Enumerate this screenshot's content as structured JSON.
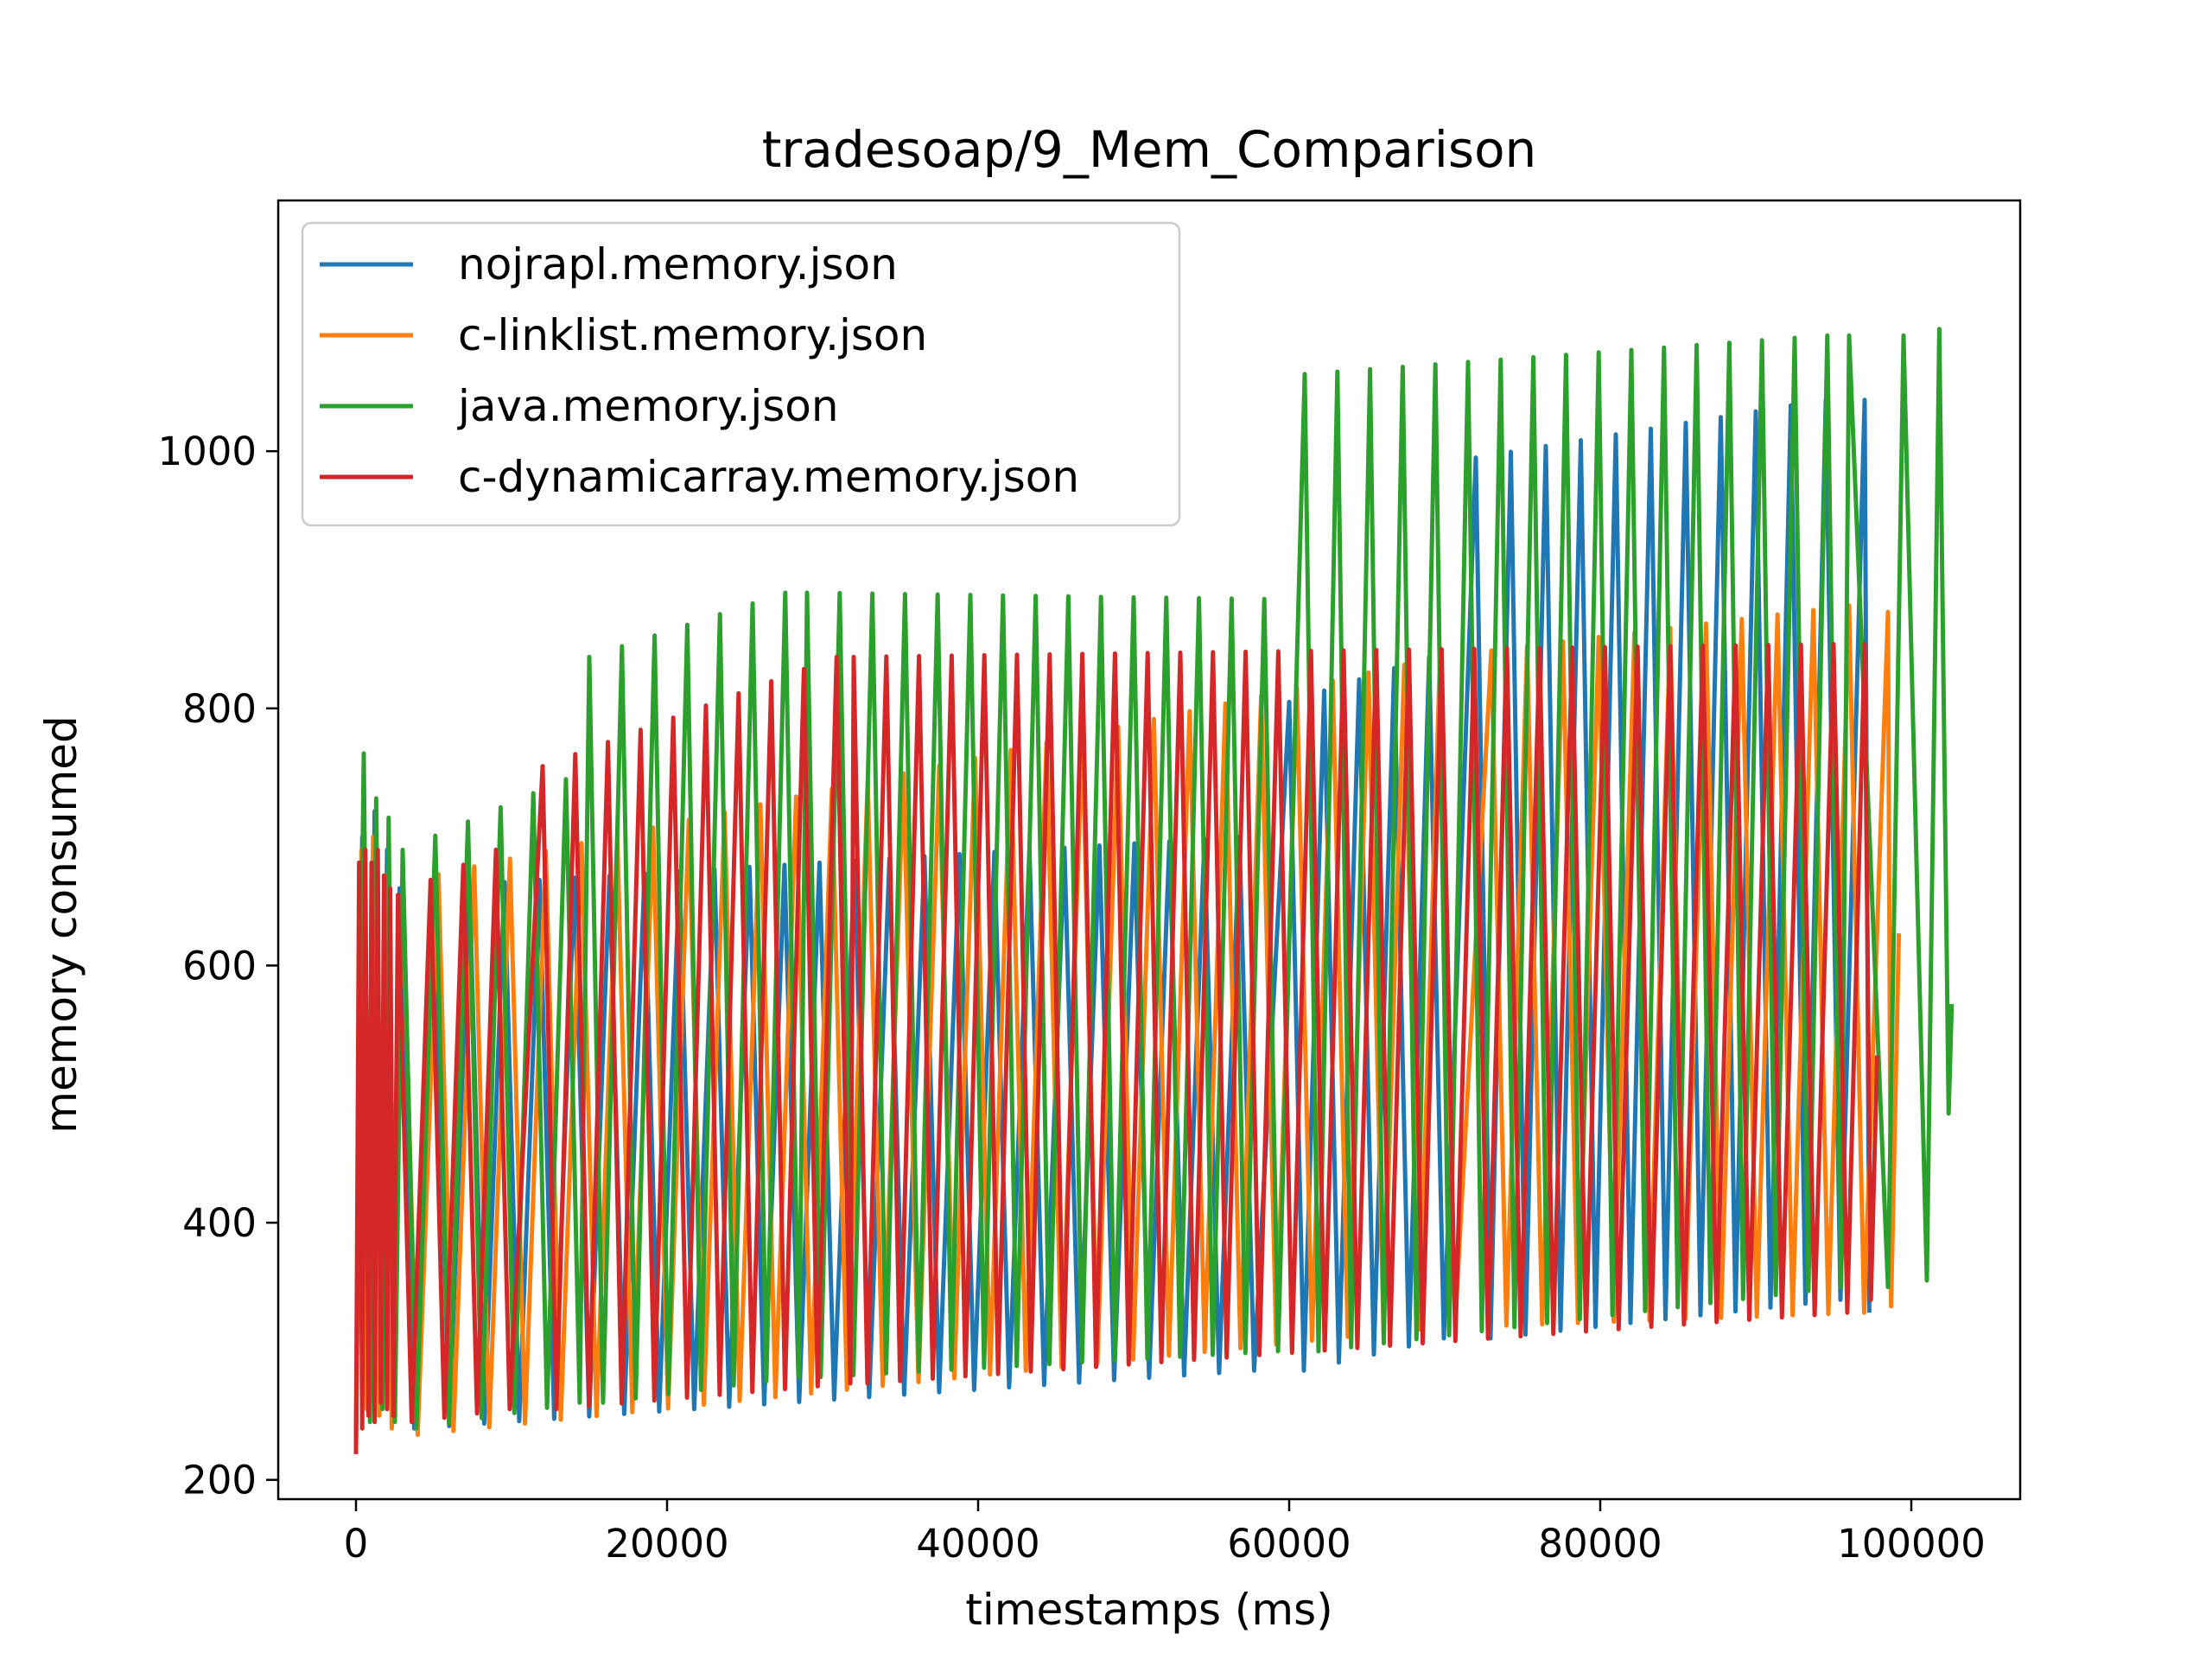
{
  "chart_data": {
    "type": "line",
    "title": "tradesoap/9_Mem_Comparison",
    "xlabel": "timestamps (ms)",
    "ylabel": "memory consumed",
    "xlim": [
      -5000,
      107000
    ],
    "ylim": [
      185,
      1195
    ],
    "x_ticks": [
      0,
      20000,
      40000,
      60000,
      80000,
      100000
    ],
    "x_tick_labels": [
      "0",
      "20000",
      "40000",
      "60000",
      "80000",
      "100000"
    ],
    "y_ticks": [
      200,
      400,
      600,
      800,
      1000
    ],
    "y_tick_labels": [
      "200",
      "400",
      "600",
      "800",
      "1000"
    ],
    "grid": false,
    "legend_position": "upper-left",
    "series": [
      {
        "name": "nojrapl.memory.json",
        "color": "#1f77b4",
        "start_x": 0,
        "start_y": 230,
        "early_points": [
          [
            400,
            700
          ],
          [
            800,
            265
          ],
          [
            1200,
            720
          ],
          [
            1600,
            255
          ],
          [
            2000,
            690
          ],
          [
            2400,
            250
          ]
        ],
        "segments": [
          {
            "x_start": 2800,
            "x_end": 60000,
            "period": 2250,
            "high_start": 660,
            "high_end": 700,
            "low_start": 240,
            "low_end": 285
          },
          {
            "x_start": 60000,
            "x_end": 72000,
            "period": 2250,
            "high_start": 805,
            "high_end": 840,
            "low_start": 285,
            "low_end": 310
          },
          {
            "x_start": 72000,
            "x_end": 97000,
            "period": 2250,
            "high_start": 995,
            "high_end": 1040,
            "low_start": 310,
            "low_end": 340
          }
        ],
        "end_points": [
          [
            97000,
            1040
          ],
          [
            97300,
            330
          ]
        ]
      },
      {
        "name": "c-linklist.memory.json",
        "color": "#ff7f0e",
        "start_x": 0,
        "start_y": 225,
        "early_points": [
          [
            350,
            690
          ],
          [
            700,
            255
          ],
          [
            1100,
            700
          ],
          [
            1500,
            250
          ],
          [
            1900,
            670
          ],
          [
            2300,
            240
          ]
        ],
        "segments": [
          {
            "x_start": 3000,
            "x_end": 73000,
            "period": 2300,
            "high_start": 665,
            "high_end": 840,
            "low_start": 235,
            "low_end": 320
          },
          {
            "x_start": 73000,
            "x_end": 98500,
            "period": 2300,
            "high_start": 845,
            "high_end": 880,
            "low_start": 320,
            "low_end": 330
          }
        ],
        "end_points": [
          [
            98500,
            875
          ],
          [
            98700,
            335
          ],
          [
            99200,
            625
          ]
        ]
      },
      {
        "name": "java.memory.json",
        "color": "#2ca02c",
        "start_x": 0,
        "start_y": 240,
        "early_points": [
          [
            500,
            765
          ],
          [
            900,
            245
          ],
          [
            1300,
            730
          ],
          [
            1700,
            255
          ],
          [
            2100,
            715
          ],
          [
            2500,
            245
          ]
        ],
        "segments": [
          {
            "x_start": 3000,
            "x_end": 15000,
            "period": 2100,
            "high_start": 690,
            "high_end": 745,
            "low_start": 240,
            "low_end": 260
          },
          {
            "x_start": 15000,
            "x_end": 29000,
            "period": 2100,
            "high_start": 840,
            "high_end": 890,
            "low_start": 260,
            "low_end": 280
          },
          {
            "x_start": 29000,
            "x_end": 61000,
            "period": 2100,
            "high_start": 890,
            "high_end": 885,
            "low_start": 280,
            "low_end": 300
          },
          {
            "x_start": 61000,
            "x_end": 96000,
            "period": 2100,
            "high_start": 1060,
            "high_end": 1090,
            "low_start": 300,
            "low_end": 350
          }
        ],
        "end_points": [
          [
            96000,
            1090
          ],
          [
            98500,
            350
          ],
          [
            99500,
            1090
          ],
          [
            101000,
            355
          ],
          [
            101800,
            1095
          ],
          [
            102400,
            485
          ],
          [
            102600,
            570
          ]
        ]
      },
      {
        "name": "c-dynamicarray.memory.json",
        "color": "#d62728",
        "start_x": 0,
        "start_y": 220,
        "early_points": [
          [
            200,
            680
          ],
          [
            400,
            240
          ],
          [
            600,
            690
          ],
          [
            800,
            250
          ],
          [
            1000,
            680
          ],
          [
            1200,
            245
          ],
          [
            1400,
            690
          ],
          [
            1600,
            260
          ],
          [
            1800,
            670
          ],
          [
            2000,
            255
          ],
          [
            2200,
            660
          ],
          [
            2400,
            250
          ]
        ],
        "segments": [
          {
            "x_start": 2700,
            "x_end": 12000,
            "period": 2100,
            "high_start": 655,
            "high_end": 690,
            "low_start": 245,
            "low_end": 255
          },
          {
            "x_start": 12000,
            "x_end": 32000,
            "period": 2100,
            "high_start": 755,
            "high_end": 840,
            "low_start": 255,
            "low_end": 275
          },
          {
            "x_start": 32000,
            "x_end": 97000,
            "period": 2100,
            "high_start": 840,
            "high_end": 850,
            "low_start": 275,
            "low_end": 330
          }
        ],
        "end_points": [
          [
            97000,
            850
          ],
          [
            97400,
            340
          ],
          [
            97800,
            530
          ]
        ]
      }
    ]
  }
}
